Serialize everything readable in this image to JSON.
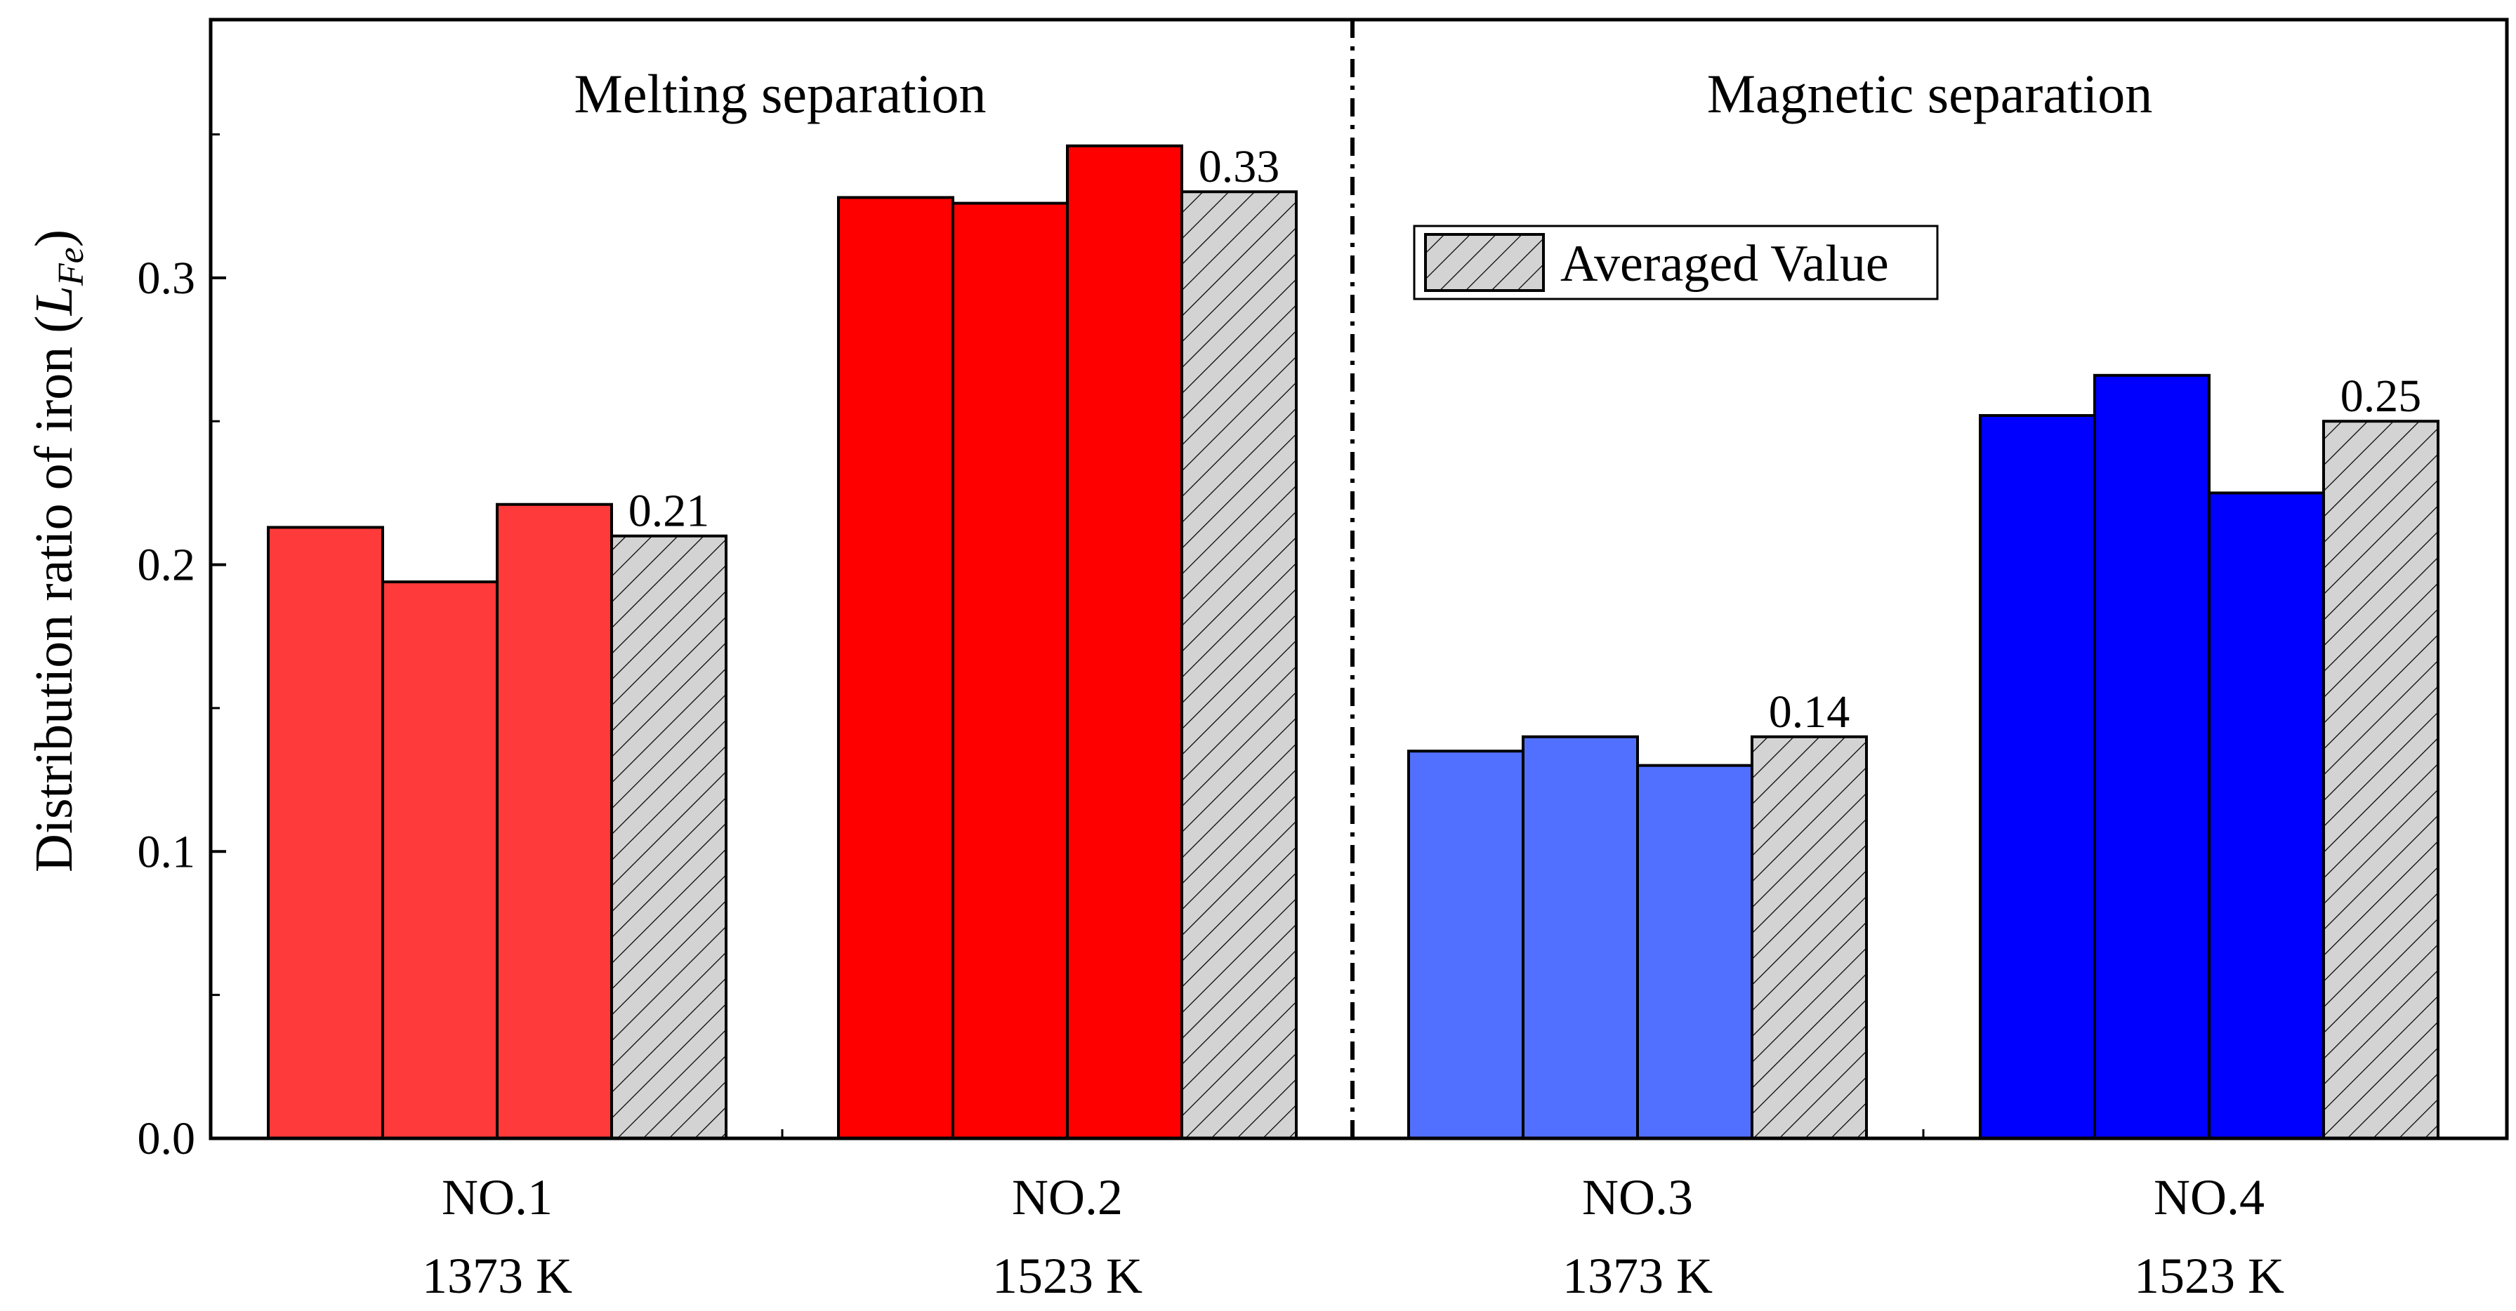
{
  "chart_data": {
    "type": "bar",
    "ylabel": "Distribution ratio of iron (L_Fe)",
    "ylabel_parts": {
      "main": "Distribution ratio of iron (",
      "italic": "L",
      "subscript": "Fe",
      "close": ")"
    },
    "ylim": [
      0,
      0.39
    ],
    "yticks": [
      "0.0",
      "0.1",
      "0.2",
      "0.3"
    ],
    "ytick_values": [
      0.0,
      0.1,
      0.2,
      0.3
    ],
    "sections": [
      "Melting separation",
      "Magnetic separation"
    ],
    "legend": {
      "label": "Averaged Value",
      "placement": "top-center"
    },
    "groups": [
      {
        "name": "NO.1",
        "temperature": "1373 K",
        "section": "Melting separation",
        "color": "#ff3a3a",
        "values": [
          0.213,
          0.194,
          0.221
        ],
        "average": 0.21,
        "average_label": "0.21"
      },
      {
        "name": "NO.2",
        "temperature": "1523 K",
        "section": "Melting separation",
        "color": "#ff0000",
        "values": [
          0.328,
          0.326,
          0.346
        ],
        "average": 0.33,
        "average_label": "0.33"
      },
      {
        "name": "NO.3",
        "temperature": "1373 K",
        "section": "Magnetic separation",
        "color": "#5270ff",
        "values": [
          0.135,
          0.14,
          0.13
        ],
        "average": 0.14,
        "average_label": "0.14"
      },
      {
        "name": "NO.4",
        "temperature": "1523 K",
        "section": "Magnetic separation",
        "color": "#0000ff",
        "values": [
          0.252,
          0.266,
          0.225
        ],
        "average": 0.25,
        "average_label": "0.25"
      }
    ],
    "average_color": "#d3d3d3"
  }
}
